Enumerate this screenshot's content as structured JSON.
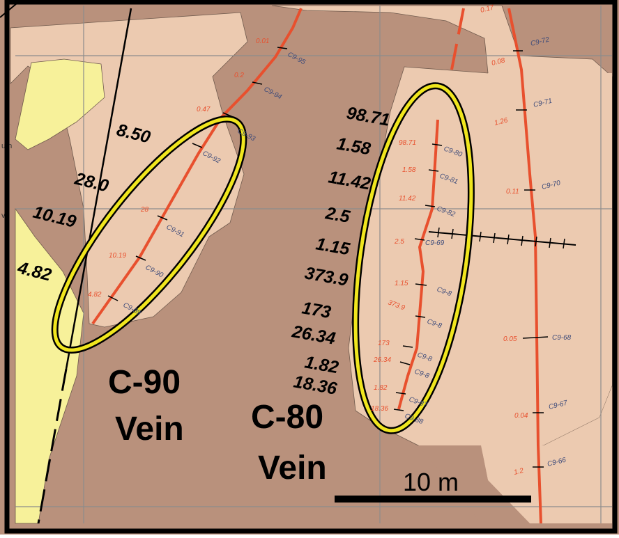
{
  "colors": {
    "bedrock": "#b9917c",
    "outcrop": "#eccab0",
    "yellow_unit": "#f7f19a",
    "channel": "#e8502e",
    "highlight": "#f0e61e",
    "grid": "#8c8c8c",
    "frame": "#000000"
  },
  "veins": [
    {
      "name": "C-90",
      "word": "Vein"
    },
    {
      "name": "C-80",
      "word": "Vein"
    }
  ],
  "left_edge_labels": [
    "um",
    "ve"
  ],
  "c90_grades_large": [
    "8.50",
    "28.0",
    "10.19",
    "4.82"
  ],
  "c90_grades_small": [
    "0.01",
    "0.2",
    "0.47",
    "28",
    "10.19",
    "4.82"
  ],
  "c90_samples": [
    "C9-95",
    "C9-94",
    "C9-93",
    "C9-92",
    "C9-91",
    "C9-90",
    "C9-89"
  ],
  "c80_grades_large": [
    "98.71",
    "1.58",
    "11.42",
    "2.5",
    "1.15",
    "373.9",
    "173",
    "26.34",
    "1.82",
    "18.36"
  ],
  "c80_grades_small": [
    "98.71",
    "1.58",
    "11.42",
    "2.5",
    "1.15",
    "373.9",
    "173",
    "26.34",
    "1.82",
    "18.36"
  ],
  "c80_samples": [
    "C9-80",
    "C9-81",
    "C9-82",
    "C9-69",
    "C9-8",
    "C9-8",
    "C9-8",
    "C9-8",
    "C9-87",
    "C9-88"
  ],
  "east_samples": [
    "C9-72",
    "C9-71",
    "C9-70",
    "C9-68",
    "C9-67",
    "C9-66"
  ],
  "east_grades": [
    "0.17",
    "0.08",
    "1.26",
    "0.11",
    "0.05",
    "0.04",
    "1.2"
  ],
  "scale_bar": {
    "label": "10 m"
  }
}
